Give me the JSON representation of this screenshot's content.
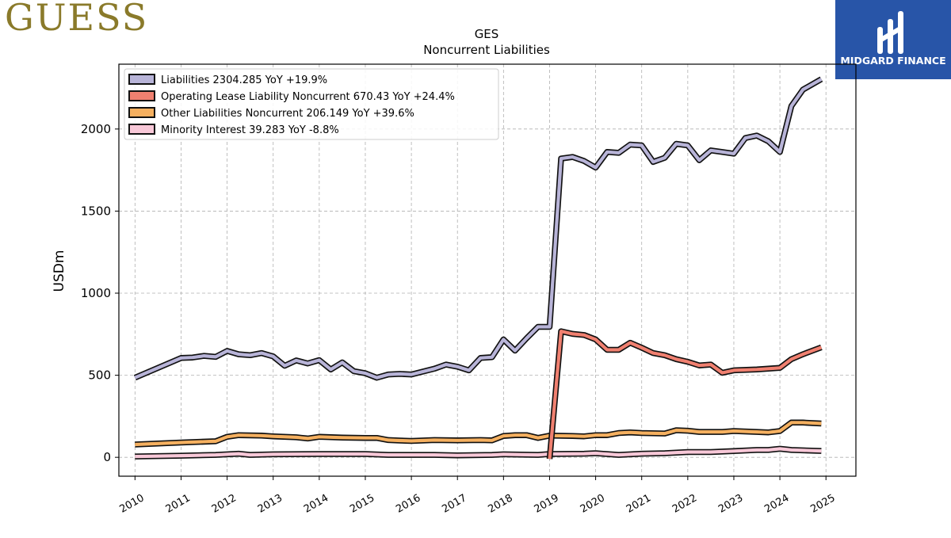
{
  "logo_left": {
    "text": "GUESS",
    "color": "#8a7a2a"
  },
  "logo_right": {
    "text": "MIDGARD FINANCE",
    "bg": "#2855a8"
  },
  "chart_data": {
    "type": "line",
    "title": "GES",
    "subtitle": "Noncurrent  Liabilities",
    "ylabel": "USDm",
    "xlabel": "",
    "xlim": [
      2009.65,
      2025.65
    ],
    "ylim": [
      -115,
      2395
    ],
    "yticks": [
      0,
      500,
      1000,
      1500,
      2000
    ],
    "xticks": [
      "2010",
      "2011",
      "2012",
      "2013",
      "2014",
      "2015",
      "2016",
      "2017",
      "2018",
      "2019",
      "2020",
      "2021",
      "2022",
      "2023",
      "2024",
      "2025"
    ],
    "grid": true,
    "legend_position": "top-left",
    "series": [
      {
        "name": "Liabilities",
        "legend_label": "Liabilities  2304.285 YoY +19.9%",
        "color": "#b8b4d8",
        "points": [
          [
            2010.0,
            485
          ],
          [
            2011.0,
            605
          ],
          [
            2011.25,
            608
          ],
          [
            2011.5,
            618
          ],
          [
            2011.75,
            612
          ],
          [
            2012.0,
            648
          ],
          [
            2012.25,
            628
          ],
          [
            2012.5,
            622
          ],
          [
            2012.75,
            635
          ],
          [
            2013.0,
            615
          ],
          [
            2013.25,
            558
          ],
          [
            2013.5,
            590
          ],
          [
            2013.75,
            572
          ],
          [
            2014.0,
            592
          ],
          [
            2014.25,
            535
          ],
          [
            2014.5,
            578
          ],
          [
            2014.75,
            525
          ],
          [
            2015.0,
            512
          ],
          [
            2015.25,
            485
          ],
          [
            2015.5,
            505
          ],
          [
            2015.75,
            508
          ],
          [
            2016.0,
            505
          ],
          [
            2016.5,
            540
          ],
          [
            2016.75,
            565
          ],
          [
            2017.0,
            552
          ],
          [
            2017.25,
            530
          ],
          [
            2017.5,
            605
          ],
          [
            2017.75,
            610
          ],
          [
            2018.0,
            718
          ],
          [
            2018.25,
            650
          ],
          [
            2018.5,
            725
          ],
          [
            2018.75,
            795
          ],
          [
            2019.0,
            795
          ],
          [
            2019.25,
            1820
          ],
          [
            2019.5,
            1830
          ],
          [
            2019.75,
            1805
          ],
          [
            2020.0,
            1765
          ],
          [
            2020.25,
            1860
          ],
          [
            2020.5,
            1855
          ],
          [
            2020.75,
            1905
          ],
          [
            2021.0,
            1900
          ],
          [
            2021.25,
            1800
          ],
          [
            2021.5,
            1825
          ],
          [
            2021.75,
            1910
          ],
          [
            2022.0,
            1900
          ],
          [
            2022.25,
            1810
          ],
          [
            2022.5,
            1870
          ],
          [
            2022.75,
            1860
          ],
          [
            2023.0,
            1850
          ],
          [
            2023.25,
            1945
          ],
          [
            2023.5,
            1960
          ],
          [
            2023.75,
            1925
          ],
          [
            2024.0,
            1860
          ],
          [
            2024.25,
            2140
          ],
          [
            2024.5,
            2240
          ],
          [
            2024.9,
            2304
          ]
        ]
      },
      {
        "name": "Operating Lease Liability Noncurrent",
        "legend_label": "Operating Lease Liability Noncurrent  670.43 YoY +24.4%",
        "color": "#f08070",
        "points": [
          [
            2019.0,
            -10
          ],
          [
            2019.25,
            768
          ],
          [
            2019.5,
            752
          ],
          [
            2019.75,
            745
          ],
          [
            2020.0,
            718
          ],
          [
            2020.25,
            655
          ],
          [
            2020.5,
            655
          ],
          [
            2020.75,
            698
          ],
          [
            2021.0,
            668
          ],
          [
            2021.25,
            635
          ],
          [
            2021.5,
            622
          ],
          [
            2021.75,
            598
          ],
          [
            2022.0,
            582
          ],
          [
            2022.25,
            560
          ],
          [
            2022.5,
            565
          ],
          [
            2022.75,
            515
          ],
          [
            2023.0,
            530
          ],
          [
            2023.5,
            535
          ],
          [
            2023.75,
            540
          ],
          [
            2024.0,
            545
          ],
          [
            2024.25,
            598
          ],
          [
            2024.5,
            628
          ],
          [
            2024.9,
            670
          ]
        ]
      },
      {
        "name": "Other Liabilities Noncurrent",
        "legend_label": "Other Liabilities Noncurrent  206.149 YoY +39.6%",
        "color": "#f5b060",
        "points": [
          [
            2010.0,
            78
          ],
          [
            2011.0,
            90
          ],
          [
            2011.75,
            98
          ],
          [
            2012.0,
            125
          ],
          [
            2012.25,
            135
          ],
          [
            2012.75,
            132
          ],
          [
            2013.0,
            128
          ],
          [
            2013.5,
            122
          ],
          [
            2013.75,
            115
          ],
          [
            2014.0,
            125
          ],
          [
            2014.5,
            120
          ],
          [
            2015.0,
            118
          ],
          [
            2015.25,
            118
          ],
          [
            2015.5,
            105
          ],
          [
            2015.75,
            102
          ],
          [
            2016.0,
            100
          ],
          [
            2016.5,
            105
          ],
          [
            2017.0,
            103
          ],
          [
            2017.5,
            105
          ],
          [
            2017.75,
            103
          ],
          [
            2018.0,
            130
          ],
          [
            2018.25,
            135
          ],
          [
            2018.5,
            135
          ],
          [
            2018.75,
            118
          ],
          [
            2019.0,
            132
          ],
          [
            2019.5,
            130
          ],
          [
            2019.75,
            128
          ],
          [
            2020.0,
            135
          ],
          [
            2020.25,
            135
          ],
          [
            2020.5,
            148
          ],
          [
            2020.75,
            152
          ],
          [
            2021.0,
            148
          ],
          [
            2021.5,
            145
          ],
          [
            2021.75,
            165
          ],
          [
            2022.0,
            162
          ],
          [
            2022.25,
            155
          ],
          [
            2022.75,
            155
          ],
          [
            2023.0,
            160
          ],
          [
            2023.5,
            155
          ],
          [
            2023.75,
            152
          ],
          [
            2024.0,
            160
          ],
          [
            2024.25,
            212
          ],
          [
            2024.5,
            212
          ],
          [
            2024.9,
            206
          ]
        ]
      },
      {
        "name": "Minority Interest",
        "legend_label": "Minority Interest  39.283 YoY -8.8%",
        "color": "#f8c8d8",
        "points": [
          [
            2010.0,
            5
          ],
          [
            2011.0,
            10
          ],
          [
            2011.75,
            15
          ],
          [
            2012.0,
            18
          ],
          [
            2012.25,
            22
          ],
          [
            2012.5,
            15
          ],
          [
            2013.0,
            18
          ],
          [
            2014.0,
            20
          ],
          [
            2015.0,
            20
          ],
          [
            2015.5,
            15
          ],
          [
            2016.5,
            15
          ],
          [
            2017.0,
            12
          ],
          [
            2017.75,
            15
          ],
          [
            2018.0,
            18
          ],
          [
            2018.75,
            15
          ],
          [
            2019.0,
            20
          ],
          [
            2019.75,
            22
          ],
          [
            2020.0,
            25
          ],
          [
            2020.5,
            15
          ],
          [
            2021.0,
            22
          ],
          [
            2021.5,
            25
          ],
          [
            2022.0,
            32
          ],
          [
            2022.5,
            32
          ],
          [
            2023.0,
            38
          ],
          [
            2023.5,
            45
          ],
          [
            2023.75,
            45
          ],
          [
            2024.0,
            52
          ],
          [
            2024.25,
            45
          ],
          [
            2024.9,
            39
          ]
        ]
      }
    ]
  }
}
